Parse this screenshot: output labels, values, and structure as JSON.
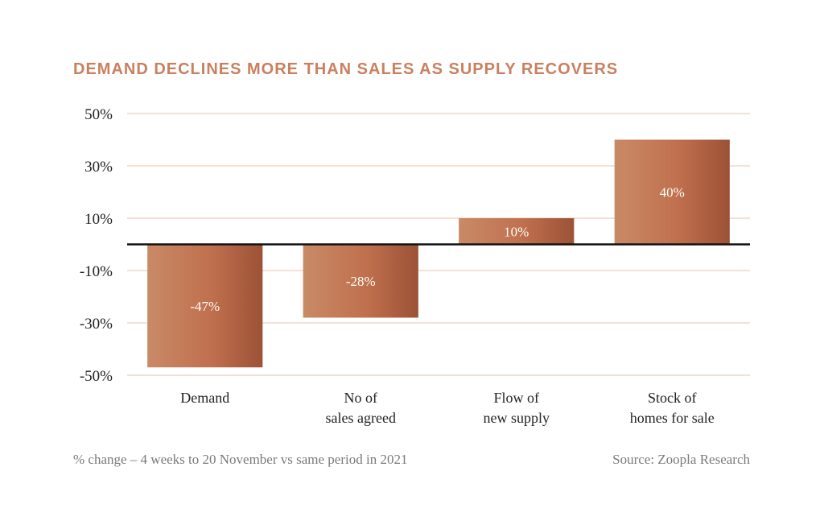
{
  "chart_data": {
    "type": "bar",
    "title": "DEMAND DECLINES MORE THAN SALES AS SUPPLY RECOVERS",
    "categories": [
      [
        "Demand"
      ],
      [
        "No of",
        "sales agreed"
      ],
      [
        "Flow of",
        "new supply"
      ],
      [
        "Stock of",
        "homes for sale"
      ]
    ],
    "values": [
      -47,
      -28,
      10,
      40
    ],
    "data_labels": [
      "-47%",
      "-28%",
      "10%",
      "40%"
    ],
    "yticks": [
      50,
      30,
      10,
      -10,
      -30,
      -50
    ],
    "ytick_labels": [
      "50%",
      "30%",
      "10%",
      "-10%",
      "-30%",
      "-50%"
    ],
    "ylim": [
      -50,
      50
    ],
    "grid": true,
    "colors": {
      "title": "#c9805f",
      "bar_light": "#c98a66",
      "bar_mid": "#c0704e",
      "bar_dark": "#9c5236",
      "grid": "#e7c3ae",
      "zero": "#111111"
    }
  },
  "footer": {
    "note": "% change – 4 weeks to 20 November vs same period in 2021",
    "source": "Source: Zoopla Research"
  }
}
